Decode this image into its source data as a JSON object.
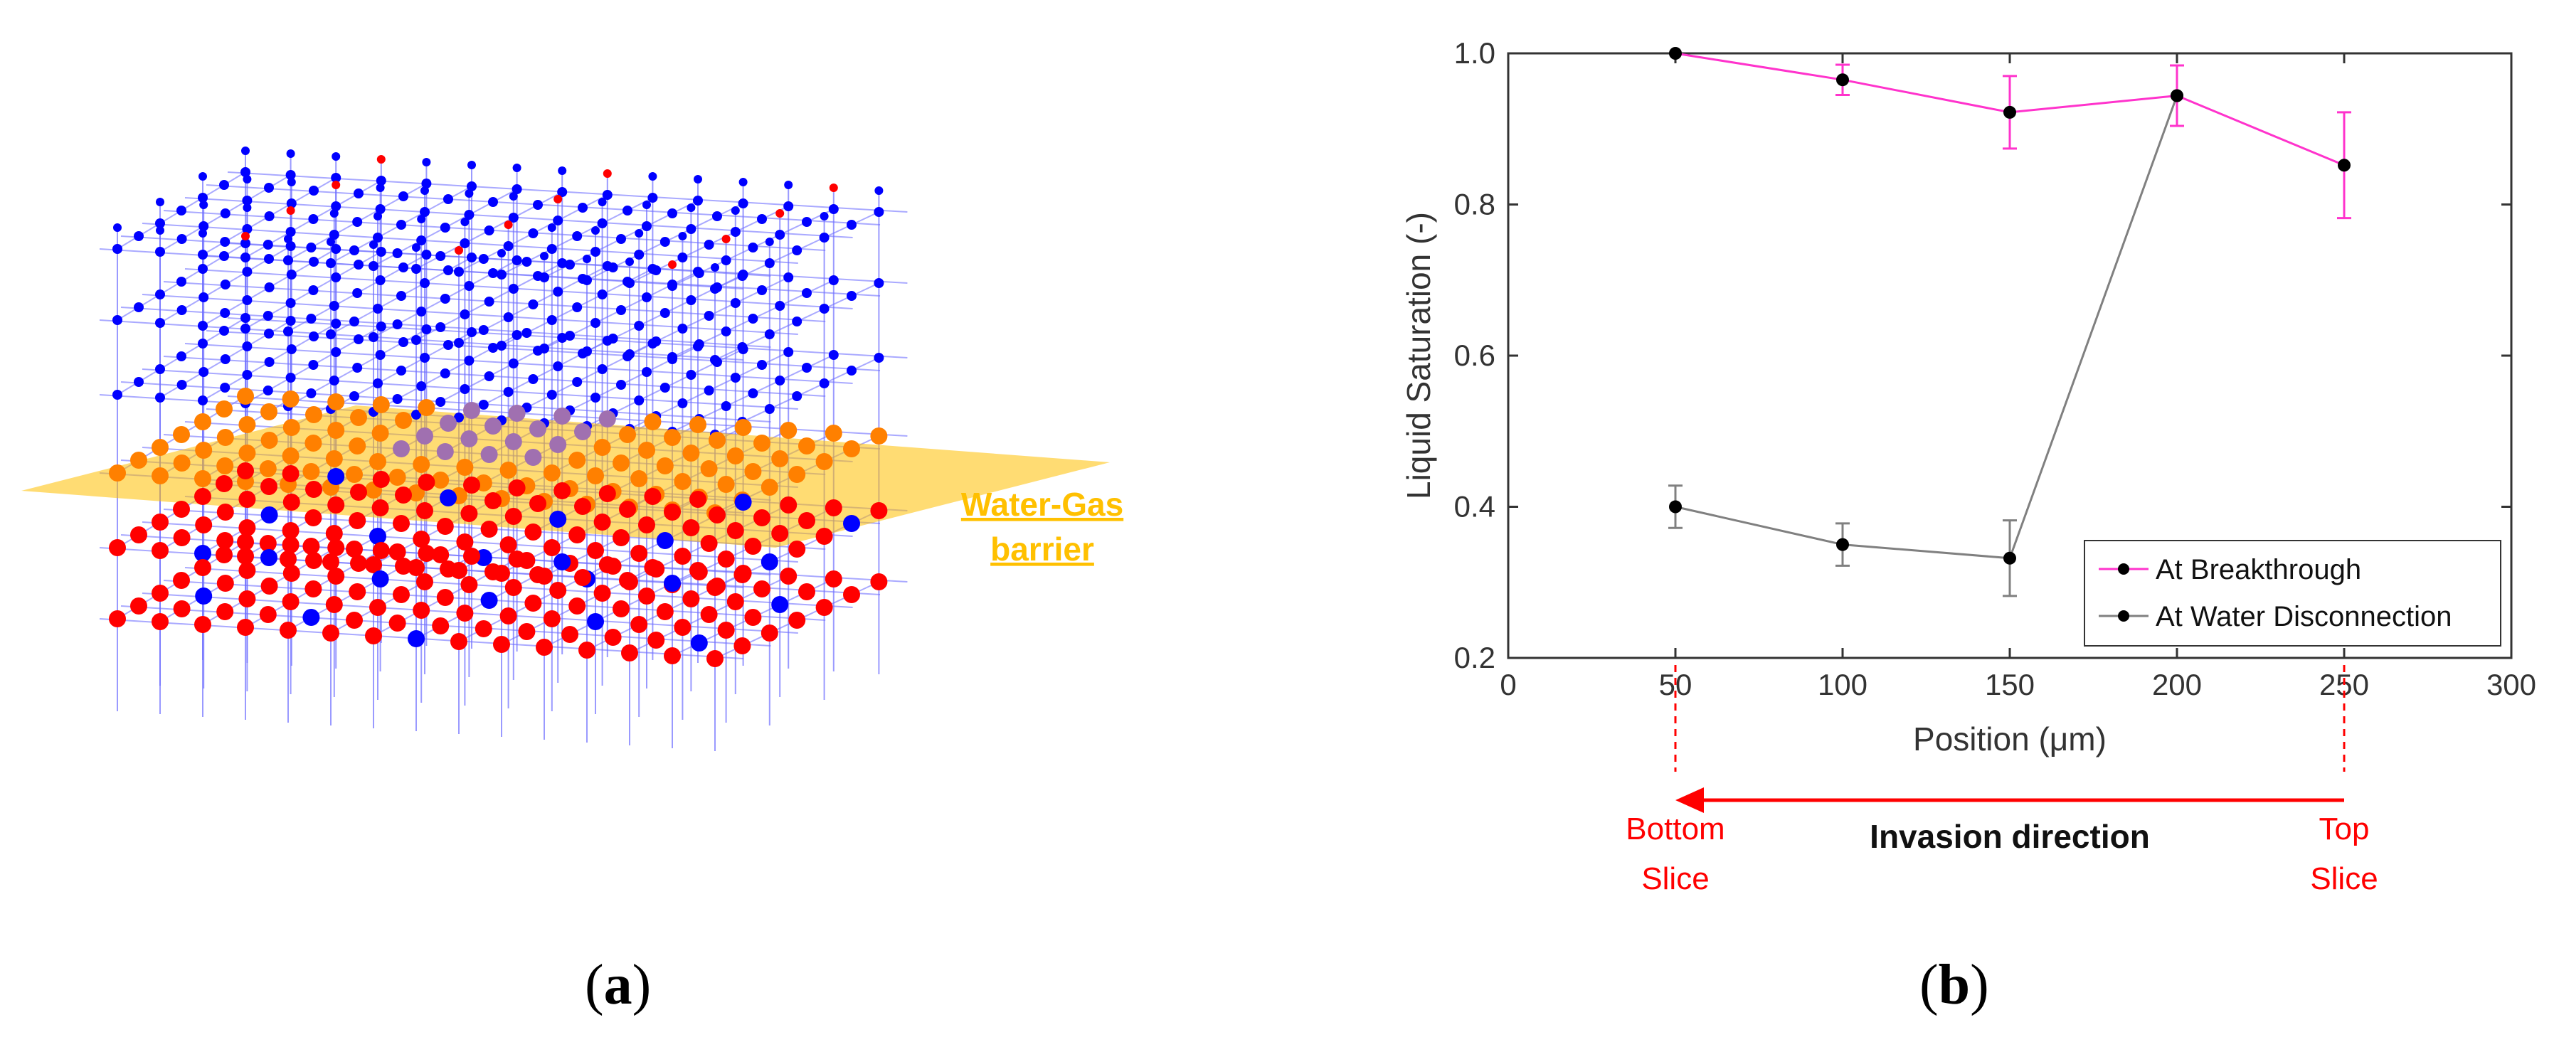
{
  "panel_a": {
    "barrier_label_line1": "Water-Gas",
    "barrier_label_line2": "barrier",
    "panel_label": "a",
    "colors": {
      "water_node": "#ff0000",
      "gas_node": "#0000ff",
      "barrier": "#ffc000"
    }
  },
  "panel_b": {
    "panel_label": "b",
    "annotations": {
      "bottom_slice_line1": "Bottom",
      "bottom_slice_line2": "Slice",
      "top_slice_line1": "Top",
      "top_slice_line2": "Slice",
      "invasion_direction": "Invasion direction"
    }
  },
  "chart_data": {
    "type": "line",
    "title": "",
    "xlabel": "Position (μm)",
    "ylabel": "Liquid Saturation (-)",
    "xlim": [
      0,
      300
    ],
    "ylim": [
      0.2,
      1.0
    ],
    "xticks": [
      "0",
      "50",
      "100",
      "150",
      "200",
      "250",
      "300"
    ],
    "yticks": [
      "0.2",
      "0.4",
      "0.6",
      "0.8",
      "1.0"
    ],
    "legend_position": "bottom-right",
    "series": [
      {
        "name": "At Breakthrough",
        "color": "#ff33cc",
        "x": [
          50,
          100,
          150,
          200,
          250
        ],
        "values": [
          1.0,
          0.965,
          0.922,
          0.944,
          0.852
        ],
        "error": [
          0.0,
          0.02,
          0.048,
          0.04,
          0.07
        ]
      },
      {
        "name": "At Water Disconnection",
        "color": "#808080",
        "x": [
          50,
          100,
          150,
          200,
          250
        ],
        "values": [
          0.4,
          0.35,
          0.332,
          0.944,
          null
        ],
        "error": [
          0.028,
          0.028,
          0.05,
          0.0,
          null
        ]
      }
    ]
  }
}
